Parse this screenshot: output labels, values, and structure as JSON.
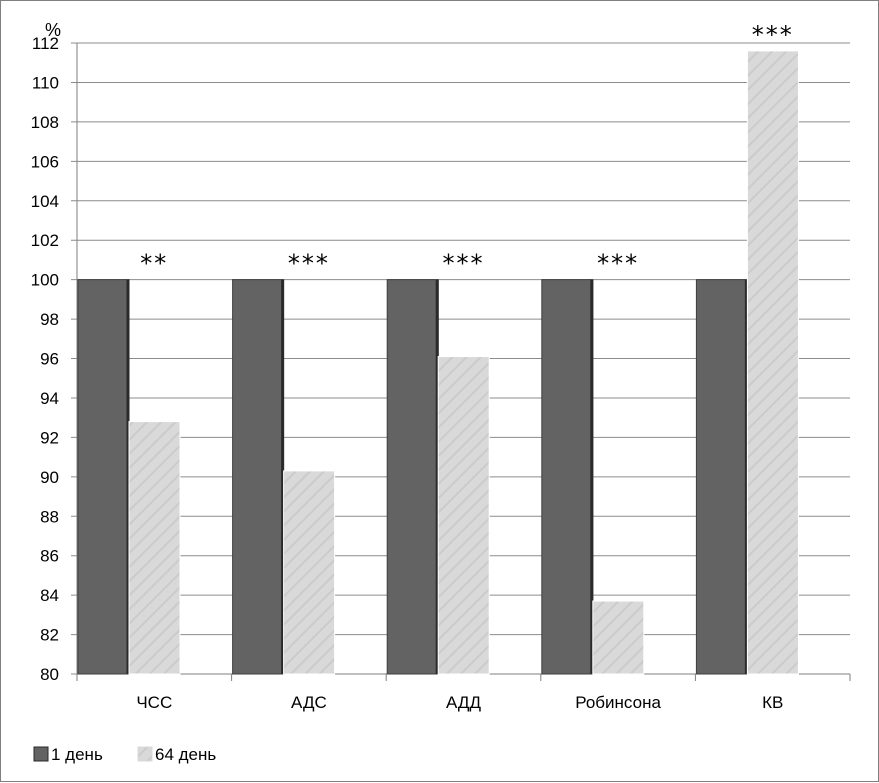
{
  "chart_data": {
    "type": "bar",
    "unit_label": "%",
    "categories": [
      "ЧСС",
      "АДС",
      "АДД",
      "Робинсона",
      "КВ"
    ],
    "series": [
      {
        "name": "1 день",
        "color": "#636363",
        "values": [
          100,
          100,
          100,
          100,
          100
        ]
      },
      {
        "name": "64 день",
        "color": "#d9d9d9",
        "pattern": "diagonal-hatch",
        "values": [
          92.8,
          90.3,
          96.1,
          83.7,
          111.6
        ]
      }
    ],
    "significance": [
      "**",
      "***",
      "***",
      "***",
      "***"
    ],
    "ylim": [
      80,
      112
    ],
    "yticks": [
      80,
      82,
      84,
      86,
      88,
      90,
      92,
      94,
      96,
      98,
      100,
      102,
      104,
      106,
      108,
      110,
      112
    ],
    "grid": true,
    "legend_position": "bottom-left"
  }
}
